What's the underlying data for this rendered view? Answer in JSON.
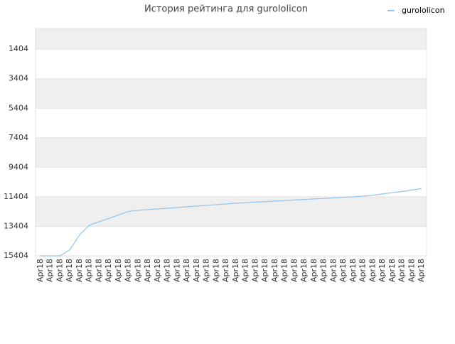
{
  "chart_data": {
    "type": "line",
    "title": "История рейтинга для gurololicon",
    "categories": [
      "Apr18",
      "Apr18",
      "Apr18",
      "Apr18",
      "Apr18",
      "Apr18",
      "Apr18",
      "Apr18",
      "Apr18",
      "Apr18",
      "Apr18",
      "Apr18",
      "Apr18",
      "Apr18",
      "Apr18",
      "Apr18",
      "Apr18",
      "Apr18",
      "Apr18",
      "Apr18",
      "Apr18",
      "Apr18",
      "Apr18",
      "Apr18",
      "Apr18",
      "Apr18",
      "Apr18",
      "Apr18",
      "Apr18",
      "Apr18",
      "Apr18",
      "Apr18",
      "Apr18",
      "Apr18",
      "Apr18",
      "Apr18",
      "Apr18",
      "Apr18",
      "Apr18",
      "Apr18"
    ],
    "series": [
      {
        "name": "gurololicon",
        "color": "#92c4ee",
        "values": [
          15404,
          15404,
          15404,
          14995,
          13982,
          13330,
          13090,
          12874,
          12633,
          12392,
          12319,
          12271,
          12223,
          12175,
          12127,
          12079,
          12030,
          11982,
          11934,
          11886,
          11837,
          11803,
          11765,
          11731,
          11693,
          11659,
          11620,
          11587,
          11548,
          11514,
          11476,
          11442,
          11403,
          11355,
          11297,
          11211,
          11124,
          11042,
          10946,
          10849
        ]
      }
    ],
    "ylim": [
      15404,
      0
    ],
    "yticks": [
      1404,
      3404,
      5404,
      7404,
      9404,
      11404,
      13404,
      15404
    ],
    "grid": true,
    "legend": "top-right"
  }
}
